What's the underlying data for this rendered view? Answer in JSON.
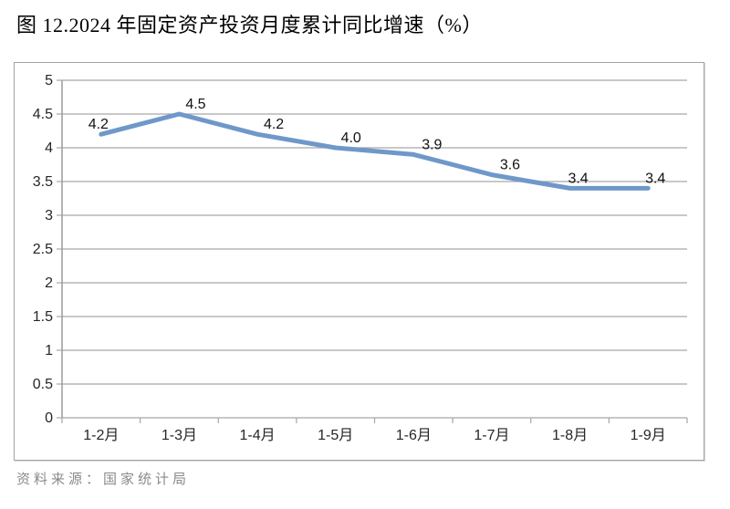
{
  "page": {
    "title": "图 12.2024 年固定资产投资月度累计同比增速（%）",
    "source_note": "资料来源：国家统计局"
  },
  "chart_data": {
    "type": "line",
    "title": "图 12.2024 年固定资产投资月度累计同比增速（%）",
    "categories": [
      "1-2月",
      "1-3月",
      "1-4月",
      "1-5月",
      "1-6月",
      "1-7月",
      "1-8月",
      "1-9月"
    ],
    "values": [
      4.2,
      4.5,
      4.2,
      4.0,
      3.9,
      3.6,
      3.4,
      3.4
    ],
    "point_labels": [
      "4.2",
      "4.5",
      "4.2",
      "4.0",
      "3.9",
      "3.6",
      "3.4",
      "3.4"
    ],
    "xlabel": "",
    "ylabel": "",
    "ylim": [
      0,
      5
    ],
    "ytick_step": 0.5,
    "ytick_labels": [
      "0",
      "0.5",
      "1",
      "1.5",
      "2",
      "2.5",
      "3",
      "3.5",
      "4",
      "4.5",
      "5"
    ],
    "grid": true,
    "legend": "none",
    "line_color": "#6e98c9",
    "grid_color": "#a6a6a6",
    "axis_color": "#9c9c9c",
    "label_color": "#262626"
  }
}
